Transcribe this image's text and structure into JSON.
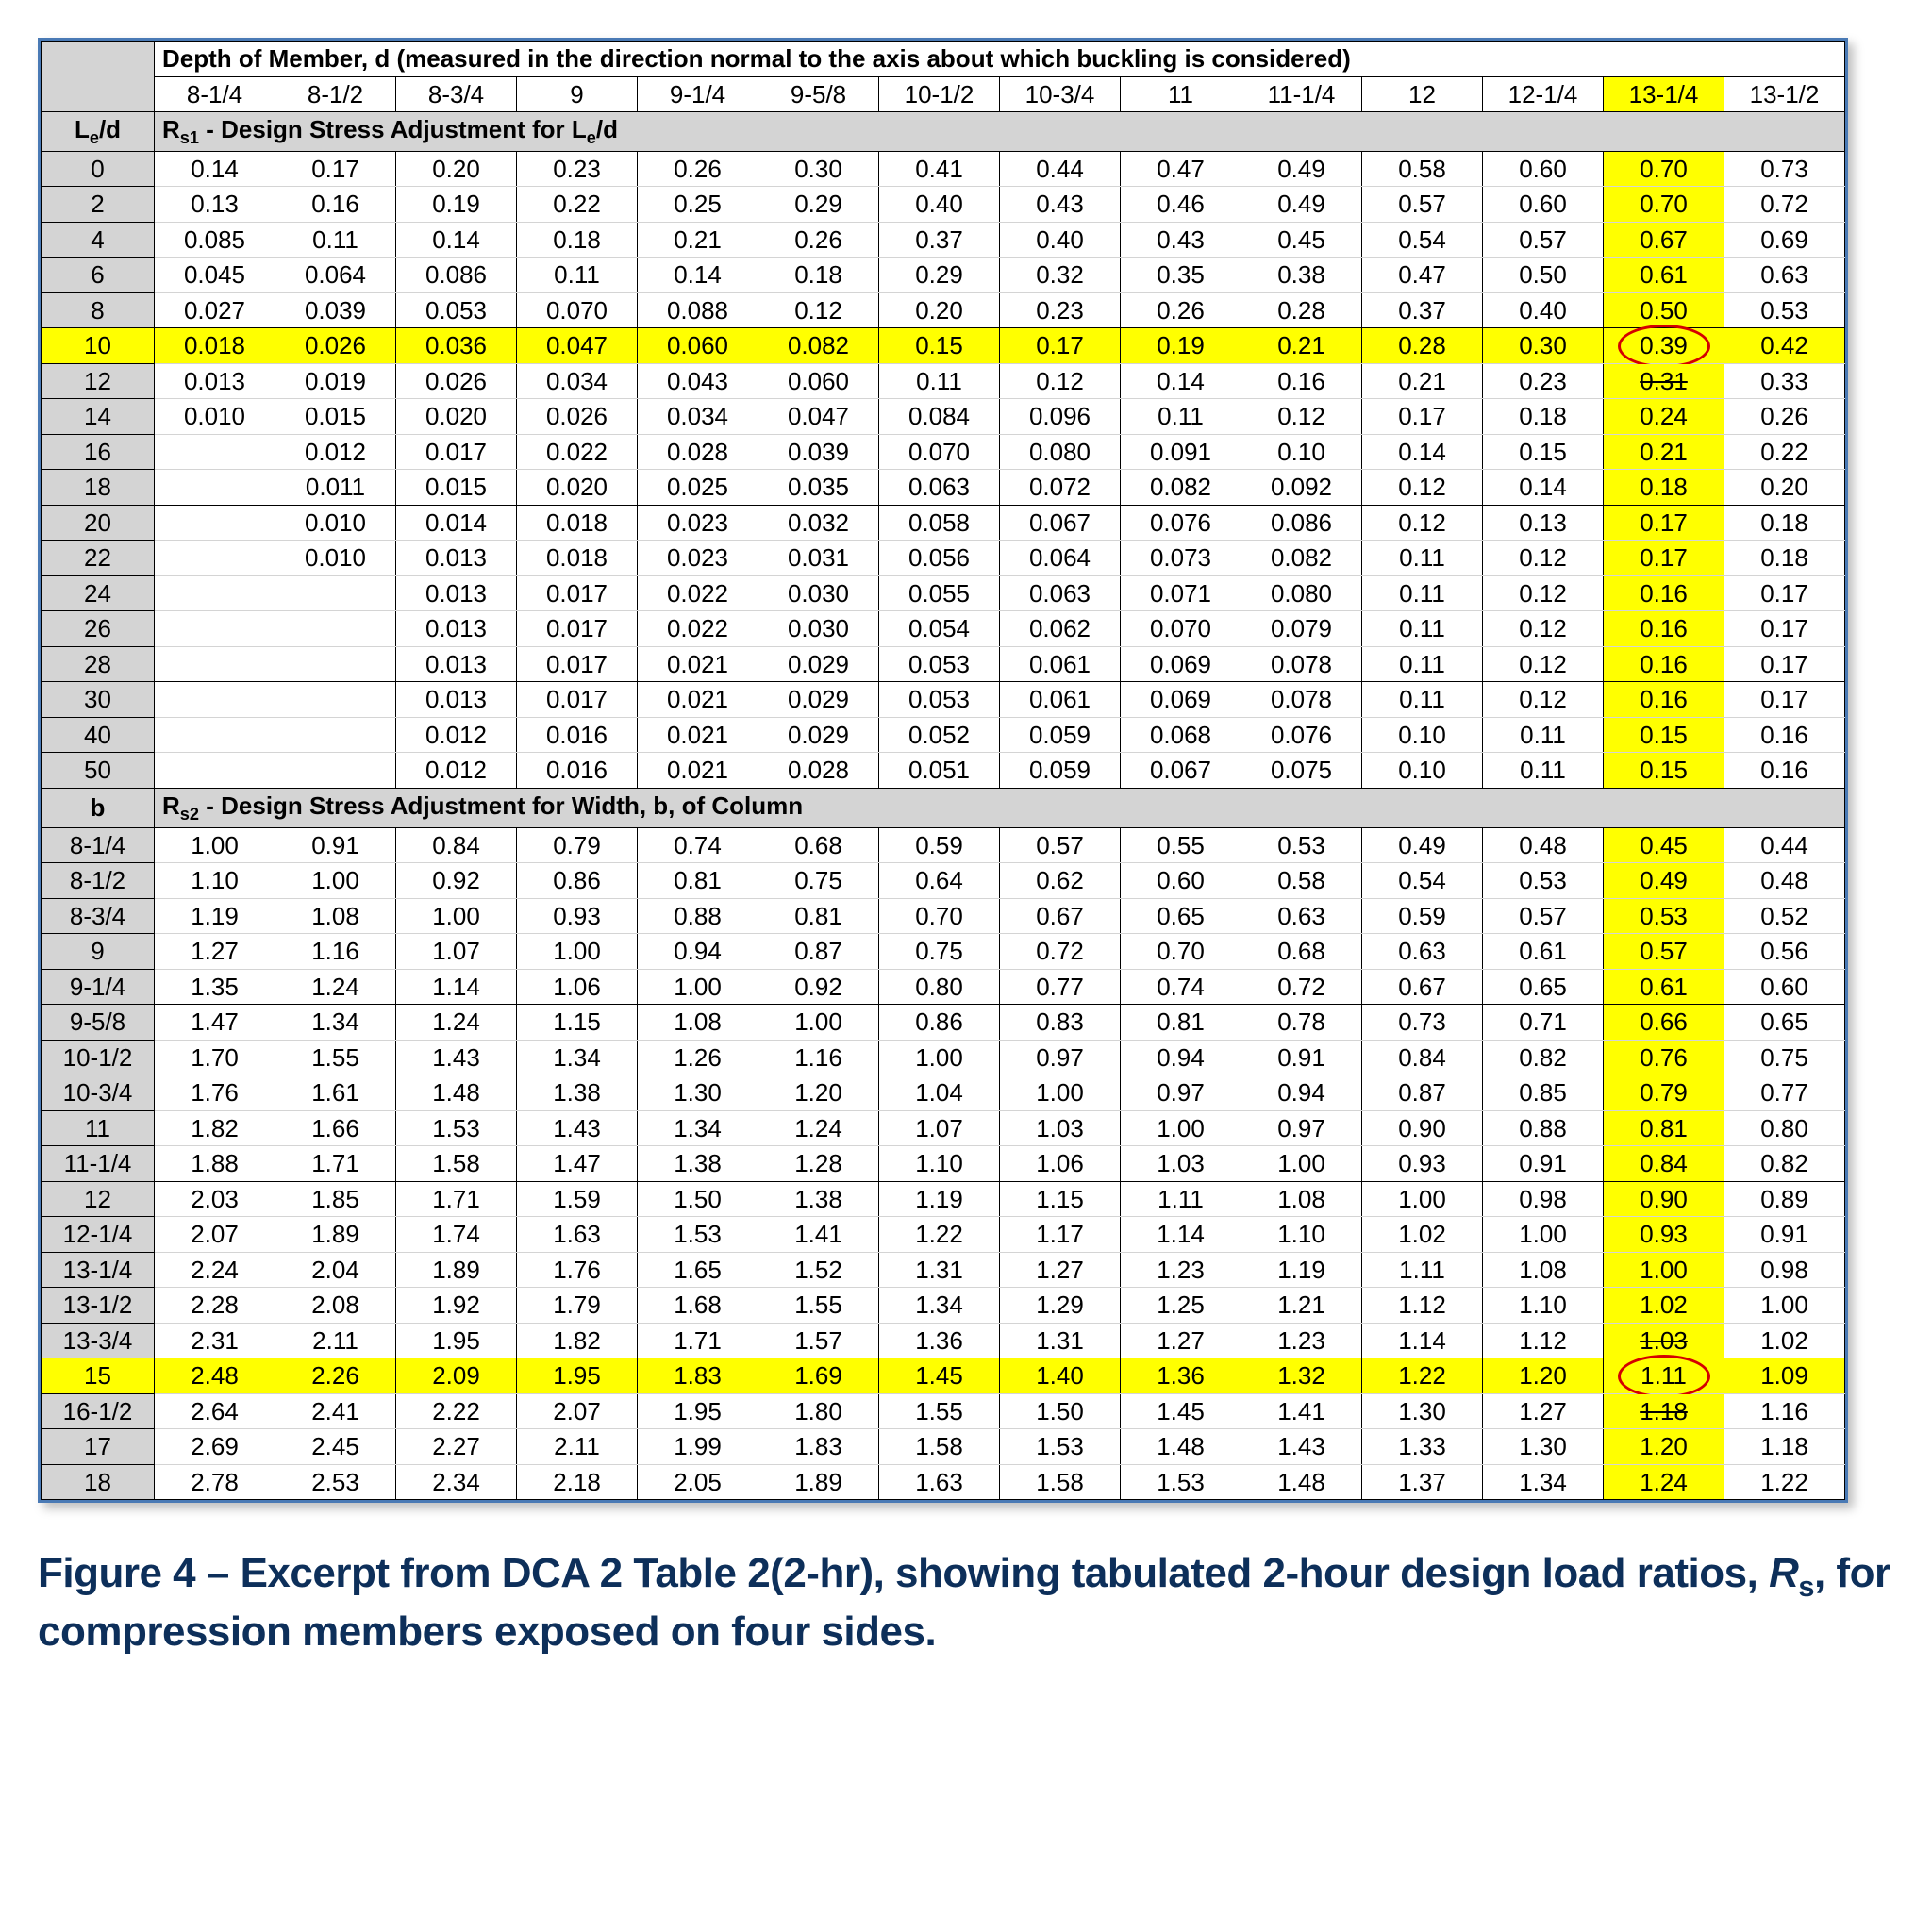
{
  "table": {
    "title_row": "Depth of Member, d (measured in the direction normal to the axis about which buckling is considered)",
    "col_headers": [
      "8-1/4",
      "8-1/2",
      "8-3/4",
      "9",
      "9-1/4",
      "9-5/8",
      "10-1/2",
      "10-3/4",
      "11",
      "11-1/4",
      "12",
      "12-1/4",
      "13-1/4",
      "13-1/2"
    ],
    "highlight_col_index": 12,
    "section1": {
      "label_html": "L<span class='sub'>e</span>/d",
      "title_html": "R<span class='sub'>s1</span> - Design Stress Adjustment for L<span class='sub'>e</span>/d",
      "rows": [
        {
          "k": "0",
          "v": [
            "0.14",
            "0.17",
            "0.20",
            "0.23",
            "0.26",
            "0.30",
            "0.41",
            "0.44",
            "0.47",
            "0.49",
            "0.58",
            "0.60",
            "0.70",
            "0.73"
          ]
        },
        {
          "k": "2",
          "v": [
            "0.13",
            "0.16",
            "0.19",
            "0.22",
            "0.25",
            "0.29",
            "0.40",
            "0.43",
            "0.46",
            "0.49",
            "0.57",
            "0.60",
            "0.70",
            "0.72"
          ]
        },
        {
          "k": "4",
          "v": [
            "0.085",
            "0.11",
            "0.14",
            "0.18",
            "0.21",
            "0.26",
            "0.37",
            "0.40",
            "0.43",
            "0.45",
            "0.54",
            "0.57",
            "0.67",
            "0.69"
          ]
        },
        {
          "k": "6",
          "v": [
            "0.045",
            "0.064",
            "0.086",
            "0.11",
            "0.14",
            "0.18",
            "0.29",
            "0.32",
            "0.35",
            "0.38",
            "0.47",
            "0.50",
            "0.61",
            "0.63"
          ]
        },
        {
          "k": "8",
          "v": [
            "0.027",
            "0.039",
            "0.053",
            "0.070",
            "0.088",
            "0.12",
            "0.20",
            "0.23",
            "0.26",
            "0.28",
            "0.37",
            "0.40",
            "0.50",
            "0.53"
          ]
        },
        {
          "k": "10",
          "v": [
            "0.018",
            "0.026",
            "0.036",
            "0.047",
            "0.060",
            "0.082",
            "0.15",
            "0.17",
            "0.19",
            "0.21",
            "0.28",
            "0.30",
            "0.39",
            "0.42"
          ],
          "hl_row": true,
          "circle_col": 12
        },
        {
          "k": "12",
          "v": [
            "0.013",
            "0.019",
            "0.026",
            "0.034",
            "0.043",
            "0.060",
            "0.11",
            "0.12",
            "0.14",
            "0.16",
            "0.21",
            "0.23",
            "0.31",
            "0.33"
          ],
          "strike_col": 12
        },
        {
          "k": "14",
          "v": [
            "0.010",
            "0.015",
            "0.020",
            "0.026",
            "0.034",
            "0.047",
            "0.084",
            "0.096",
            "0.11",
            "0.12",
            "0.17",
            "0.18",
            "0.24",
            "0.26"
          ]
        },
        {
          "k": "16",
          "v": [
            "",
            "0.012",
            "0.017",
            "0.022",
            "0.028",
            "0.039",
            "0.070",
            "0.080",
            "0.091",
            "0.10",
            "0.14",
            "0.15",
            "0.21",
            "0.22"
          ]
        },
        {
          "k": "18",
          "v": [
            "",
            "0.011",
            "0.015",
            "0.020",
            "0.025",
            "0.035",
            "0.063",
            "0.072",
            "0.082",
            "0.092",
            "0.12",
            "0.14",
            "0.18",
            "0.20"
          ]
        },
        {
          "k": "20",
          "v": [
            "",
            "0.010",
            "0.014",
            "0.018",
            "0.023",
            "0.032",
            "0.058",
            "0.067",
            "0.076",
            "0.086",
            "0.12",
            "0.13",
            "0.17",
            "0.18"
          ]
        },
        {
          "k": "22",
          "v": [
            "",
            "0.010",
            "0.013",
            "0.018",
            "0.023",
            "0.031",
            "0.056",
            "0.064",
            "0.073",
            "0.082",
            "0.11",
            "0.12",
            "0.17",
            "0.18"
          ]
        },
        {
          "k": "24",
          "v": [
            "",
            "",
            "0.013",
            "0.017",
            "0.022",
            "0.030",
            "0.055",
            "0.063",
            "0.071",
            "0.080",
            "0.11",
            "0.12",
            "0.16",
            "0.17"
          ]
        },
        {
          "k": "26",
          "v": [
            "",
            "",
            "0.013",
            "0.017",
            "0.022",
            "0.030",
            "0.054",
            "0.062",
            "0.070",
            "0.079",
            "0.11",
            "0.12",
            "0.16",
            "0.17"
          ]
        },
        {
          "k": "28",
          "v": [
            "",
            "",
            "0.013",
            "0.017",
            "0.021",
            "0.029",
            "0.053",
            "0.061",
            "0.069",
            "0.078",
            "0.11",
            "0.12",
            "0.16",
            "0.17"
          ]
        },
        {
          "k": "30",
          "v": [
            "",
            "",
            "0.013",
            "0.017",
            "0.021",
            "0.029",
            "0.053",
            "0.061",
            "0.069",
            "0.078",
            "0.11",
            "0.12",
            "0.16",
            "0.17"
          ]
        },
        {
          "k": "40",
          "v": [
            "",
            "",
            "0.012",
            "0.016",
            "0.021",
            "0.029",
            "0.052",
            "0.059",
            "0.068",
            "0.076",
            "0.10",
            "0.11",
            "0.15",
            "0.16"
          ]
        },
        {
          "k": "50",
          "v": [
            "",
            "",
            "0.012",
            "0.016",
            "0.021",
            "0.028",
            "0.051",
            "0.059",
            "0.067",
            "0.075",
            "0.10",
            "0.11",
            "0.15",
            "0.16"
          ]
        }
      ],
      "groups": [
        [
          0,
          4
        ],
        [
          5,
          9
        ],
        [
          10,
          14
        ],
        [
          15,
          17
        ]
      ]
    },
    "section2": {
      "label": "b",
      "title_html": "R<span class='sub'>s2</span> - Design Stress Adjustment for Width, b, of Column",
      "rows": [
        {
          "k": "8-1/4",
          "v": [
            "1.00",
            "0.91",
            "0.84",
            "0.79",
            "0.74",
            "0.68",
            "0.59",
            "0.57",
            "0.55",
            "0.53",
            "0.49",
            "0.48",
            "0.45",
            "0.44"
          ]
        },
        {
          "k": "8-1/2",
          "v": [
            "1.10",
            "1.00",
            "0.92",
            "0.86",
            "0.81",
            "0.75",
            "0.64",
            "0.62",
            "0.60",
            "0.58",
            "0.54",
            "0.53",
            "0.49",
            "0.48"
          ]
        },
        {
          "k": "8-3/4",
          "v": [
            "1.19",
            "1.08",
            "1.00",
            "0.93",
            "0.88",
            "0.81",
            "0.70",
            "0.67",
            "0.65",
            "0.63",
            "0.59",
            "0.57",
            "0.53",
            "0.52"
          ]
        },
        {
          "k": "9",
          "v": [
            "1.27",
            "1.16",
            "1.07",
            "1.00",
            "0.94",
            "0.87",
            "0.75",
            "0.72",
            "0.70",
            "0.68",
            "0.63",
            "0.61",
            "0.57",
            "0.56"
          ]
        },
        {
          "k": "9-1/4",
          "v": [
            "1.35",
            "1.24",
            "1.14",
            "1.06",
            "1.00",
            "0.92",
            "0.80",
            "0.77",
            "0.74",
            "0.72",
            "0.67",
            "0.65",
            "0.61",
            "0.60"
          ]
        },
        {
          "k": "9-5/8",
          "v": [
            "1.47",
            "1.34",
            "1.24",
            "1.15",
            "1.08",
            "1.00",
            "0.86",
            "0.83",
            "0.81",
            "0.78",
            "0.73",
            "0.71",
            "0.66",
            "0.65"
          ]
        },
        {
          "k": "10-1/2",
          "v": [
            "1.70",
            "1.55",
            "1.43",
            "1.34",
            "1.26",
            "1.16",
            "1.00",
            "0.97",
            "0.94",
            "0.91",
            "0.84",
            "0.82",
            "0.76",
            "0.75"
          ]
        },
        {
          "k": "10-3/4",
          "v": [
            "1.76",
            "1.61",
            "1.48",
            "1.38",
            "1.30",
            "1.20",
            "1.04",
            "1.00",
            "0.97",
            "0.94",
            "0.87",
            "0.85",
            "0.79",
            "0.77"
          ]
        },
        {
          "k": "11",
          "v": [
            "1.82",
            "1.66",
            "1.53",
            "1.43",
            "1.34",
            "1.24",
            "1.07",
            "1.03",
            "1.00",
            "0.97",
            "0.90",
            "0.88",
            "0.81",
            "0.80"
          ]
        },
        {
          "k": "11-1/4",
          "v": [
            "1.88",
            "1.71",
            "1.58",
            "1.47",
            "1.38",
            "1.28",
            "1.10",
            "1.06",
            "1.03",
            "1.00",
            "0.93",
            "0.91",
            "0.84",
            "0.82"
          ]
        },
        {
          "k": "12",
          "v": [
            "2.03",
            "1.85",
            "1.71",
            "1.59",
            "1.50",
            "1.38",
            "1.19",
            "1.15",
            "1.11",
            "1.08",
            "1.00",
            "0.98",
            "0.90",
            "0.89"
          ]
        },
        {
          "k": "12-1/4",
          "v": [
            "2.07",
            "1.89",
            "1.74",
            "1.63",
            "1.53",
            "1.41",
            "1.22",
            "1.17",
            "1.14",
            "1.10",
            "1.02",
            "1.00",
            "0.93",
            "0.91"
          ]
        },
        {
          "k": "13-1/4",
          "v": [
            "2.24",
            "2.04",
            "1.89",
            "1.76",
            "1.65",
            "1.52",
            "1.31",
            "1.27",
            "1.23",
            "1.19",
            "1.11",
            "1.08",
            "1.00",
            "0.98"
          ]
        },
        {
          "k": "13-1/2",
          "v": [
            "2.28",
            "2.08",
            "1.92",
            "1.79",
            "1.68",
            "1.55",
            "1.34",
            "1.29",
            "1.25",
            "1.21",
            "1.12",
            "1.10",
            "1.02",
            "1.00"
          ]
        },
        {
          "k": "13-3/4",
          "v": [
            "2.31",
            "2.11",
            "1.95",
            "1.82",
            "1.71",
            "1.57",
            "1.36",
            "1.31",
            "1.27",
            "1.23",
            "1.14",
            "1.12",
            "1.03",
            "1.02"
          ],
          "strike_col": 12
        },
        {
          "k": "15",
          "v": [
            "2.48",
            "2.26",
            "2.09",
            "1.95",
            "1.83",
            "1.69",
            "1.45",
            "1.40",
            "1.36",
            "1.32",
            "1.22",
            "1.20",
            "1.11",
            "1.09"
          ],
          "hl_row": true,
          "circle_col": 12
        },
        {
          "k": "16-1/2",
          "v": [
            "2.64",
            "2.41",
            "2.22",
            "2.07",
            "1.95",
            "1.80",
            "1.55",
            "1.50",
            "1.45",
            "1.41",
            "1.30",
            "1.27",
            "1.18",
            "1.16"
          ],
          "strike_col": 12
        },
        {
          "k": "17",
          "v": [
            "2.69",
            "2.45",
            "2.27",
            "2.11",
            "1.99",
            "1.83",
            "1.58",
            "1.53",
            "1.48",
            "1.43",
            "1.33",
            "1.30",
            "1.20",
            "1.18"
          ]
        },
        {
          "k": "18",
          "v": [
            "2.78",
            "2.53",
            "2.34",
            "2.18",
            "2.05",
            "1.89",
            "1.63",
            "1.58",
            "1.53",
            "1.48",
            "1.37",
            "1.34",
            "1.24",
            "1.22"
          ]
        }
      ],
      "groups": [
        [
          0,
          4
        ],
        [
          5,
          9
        ],
        [
          10,
          14
        ],
        [
          15,
          18
        ]
      ]
    }
  },
  "caption": {
    "prefix": "Figure 4 – Excerpt from DCA 2 Table 2(2-hr), showing tabulated 2-hour design load ratios, ",
    "ital": "R",
    "sub": "s",
    "suffix": ", for compression members exposed on four sides."
  },
  "colors": {
    "highlight": "#ffff00",
    "gray": "#d4d4d4",
    "border": "#4a7ab5",
    "circle": "#d40000",
    "caption": "#0d2f5a"
  }
}
